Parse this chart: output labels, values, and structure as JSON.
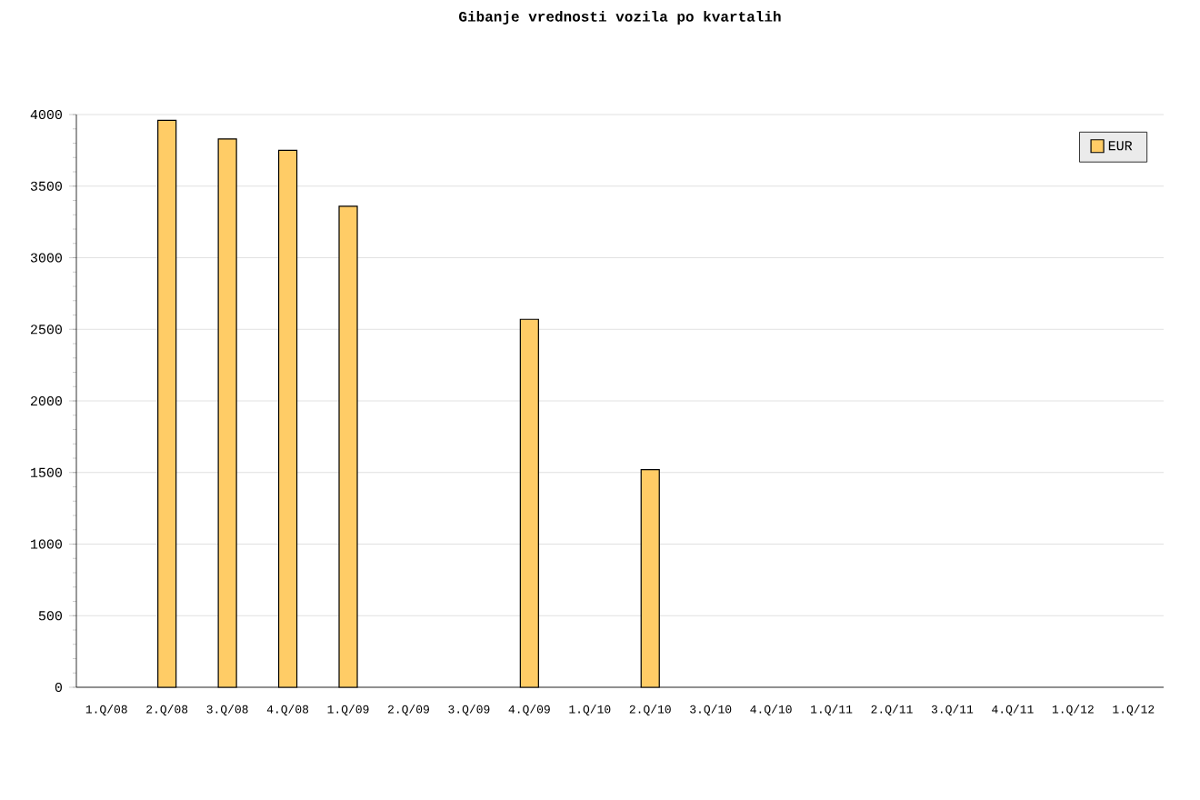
{
  "chart_data": {
    "type": "bar",
    "title": "Gibanje vrednosti vozila po kvartalih",
    "categories": [
      "1.Q/08",
      "2.Q/08",
      "3.Q/08",
      "4.Q/08",
      "1.Q/09",
      "2.Q/09",
      "3.Q/09",
      "4.Q/09",
      "1.Q/10",
      "2.Q/10",
      "3.Q/10",
      "4.Q/10",
      "1.Q/11",
      "2.Q/11",
      "3.Q/11",
      "4.Q/11",
      "1.Q/12",
      "1.Q/12"
    ],
    "series": [
      {
        "name": "EUR",
        "color": "#ffcc66",
        "values": [
          null,
          3960,
          3830,
          3750,
          3360,
          null,
          null,
          2570,
          null,
          1520,
          null,
          null,
          null,
          null,
          null,
          null,
          null,
          null
        ]
      }
    ],
    "ylim": [
      0,
      4000
    ],
    "yticks": [
      0,
      500,
      1000,
      1500,
      2000,
      2500,
      3000,
      3500,
      4000
    ],
    "grid": "y",
    "legend": "top right"
  }
}
